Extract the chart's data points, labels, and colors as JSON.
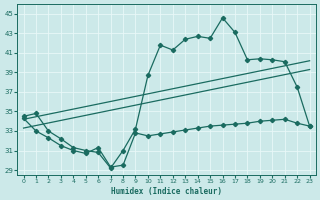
{
  "xlabel": "Humidex (Indice chaleur)",
  "x_ticks": [
    0,
    1,
    2,
    3,
    4,
    5,
    6,
    7,
    8,
    9,
    10,
    11,
    12,
    13,
    14,
    15,
    16,
    17,
    18,
    19,
    20,
    21,
    22,
    23
  ],
  "y_ticks": [
    29,
    31,
    33,
    35,
    37,
    39,
    41,
    43,
    45
  ],
  "xlim": [
    -0.5,
    23.5
  ],
  "ylim": [
    28.5,
    46.0
  ],
  "bg_color": "#cce9e9",
  "line_color": "#1a6b60",
  "grid_color": "#e8f8f8",
  "main_curve_x": [
    0,
    1,
    2,
    3,
    4,
    5,
    6,
    7,
    8,
    9,
    10,
    11,
    12,
    13,
    14,
    15,
    16,
    17,
    18,
    19,
    20,
    21,
    22,
    23
  ],
  "main_curve_y": [
    34.5,
    34.8,
    33.0,
    32.2,
    31.3,
    31.0,
    30.8,
    29.2,
    31.0,
    33.2,
    38.7,
    41.8,
    41.3,
    42.4,
    42.7,
    42.5,
    44.6,
    43.1,
    40.3,
    40.4,
    40.3,
    40.1,
    37.5,
    33.5
  ],
  "line1_x": [
    0,
    23
  ],
  "line1_y": [
    34.2,
    40.2
  ],
  "line2_x": [
    0,
    23
  ],
  "line2_y": [
    33.3,
    39.3
  ],
  "bottom_curve_x": [
    0,
    1,
    2,
    3,
    4,
    5,
    6,
    7,
    8,
    9,
    10,
    11,
    12,
    13,
    14,
    15,
    16,
    17,
    18,
    19,
    20,
    21,
    22,
    23
  ],
  "bottom_curve_y": [
    34.3,
    33.0,
    32.3,
    31.5,
    31.0,
    30.7,
    31.3,
    29.3,
    29.5,
    32.8,
    32.5,
    32.7,
    32.9,
    33.1,
    33.3,
    33.5,
    33.6,
    33.7,
    33.8,
    34.0,
    34.1,
    34.2,
    33.8,
    33.5
  ]
}
